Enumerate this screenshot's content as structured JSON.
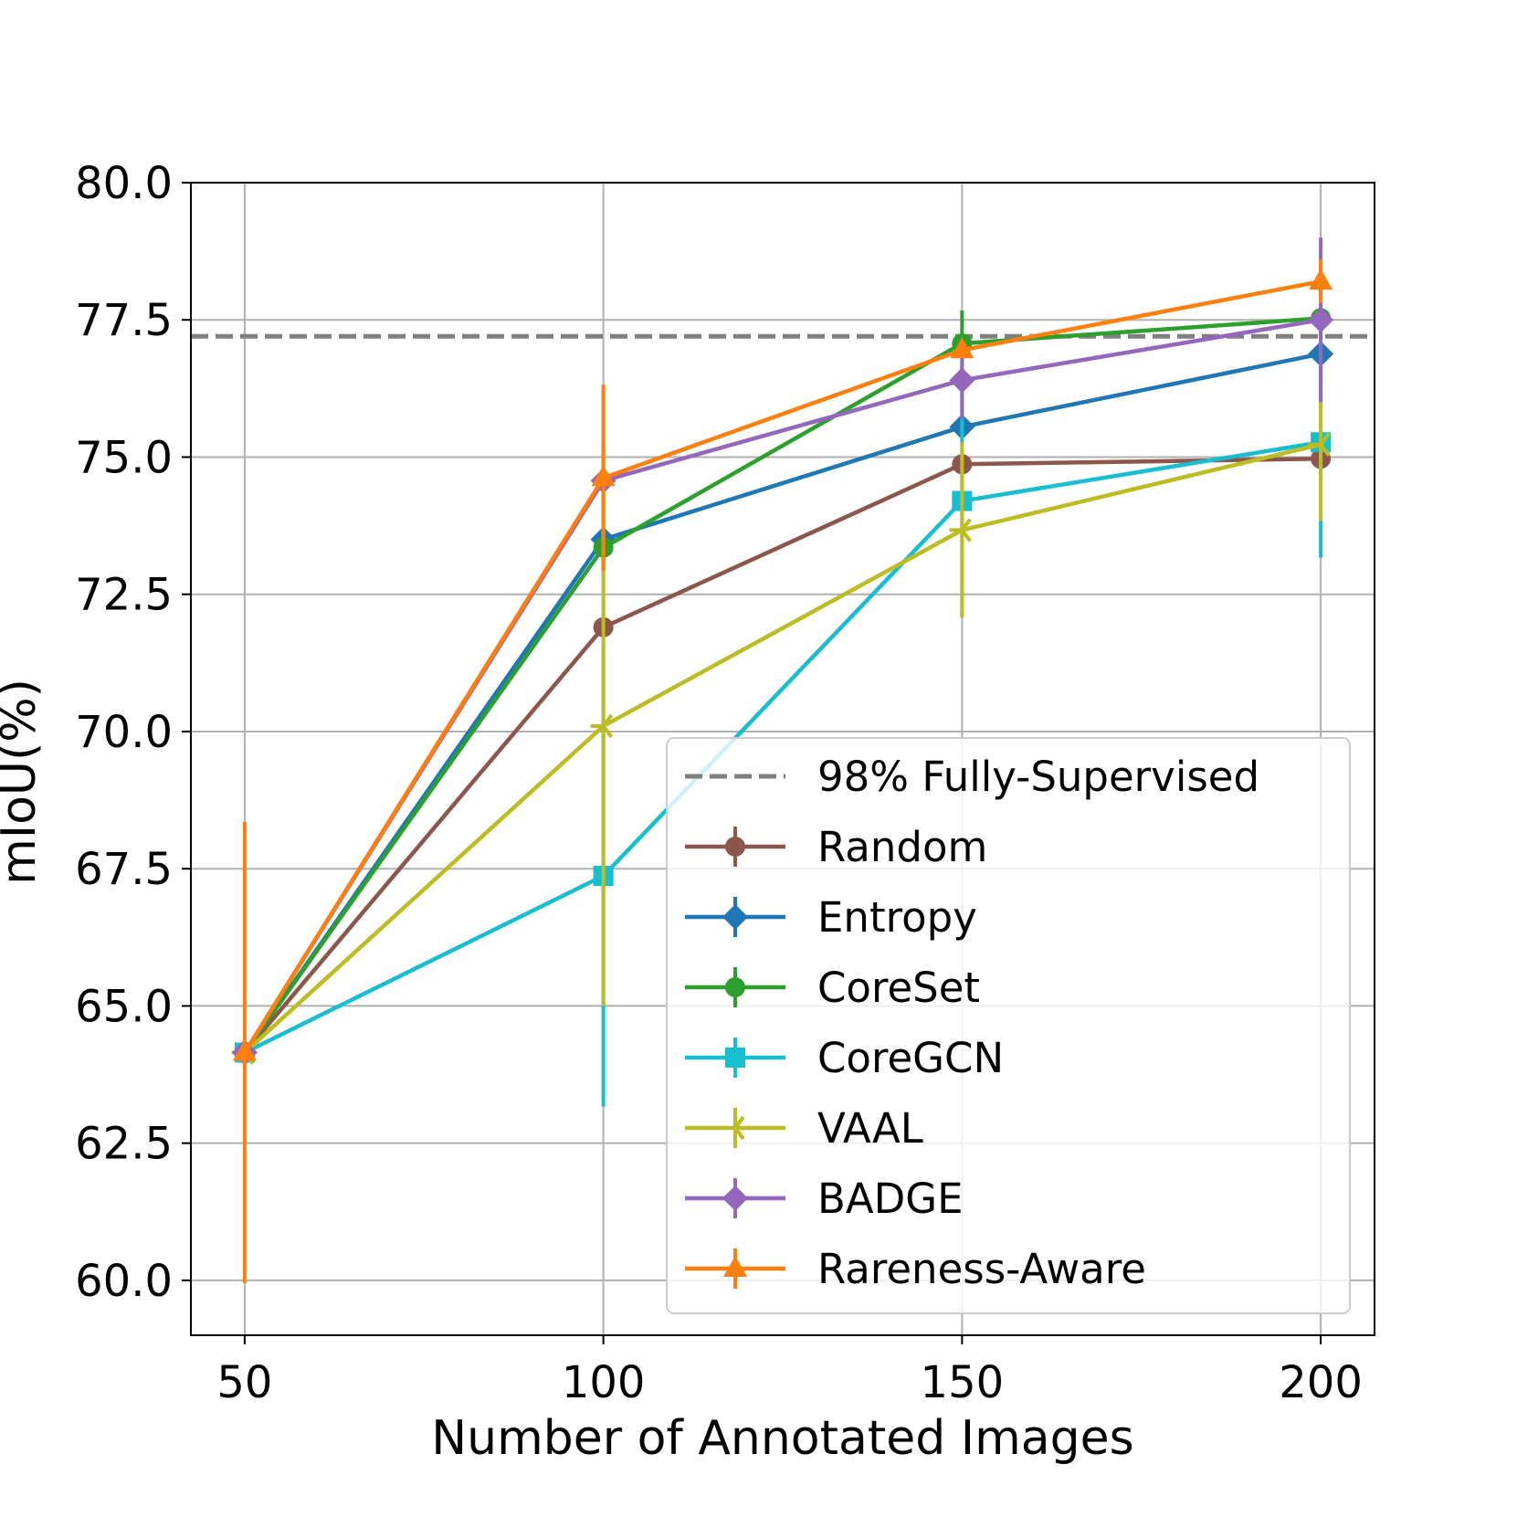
{
  "chart_data": {
    "type": "line",
    "title": "",
    "xlabel": "Number of Annotated Images",
    "ylabel": "mIoU(%)",
    "x": [
      50,
      100,
      150,
      200
    ],
    "xlim": [
      42.5,
      207.5
    ],
    "ylim": [
      59.0,
      80.0
    ],
    "xticks": [
      50,
      100,
      150,
      200
    ],
    "yticks": [
      60.0,
      62.5,
      65.0,
      67.5,
      70.0,
      72.5,
      75.0,
      77.5,
      80.0
    ],
    "grid": true,
    "legend_position": "lower-right",
    "reference_line": {
      "name": "98% Fully-Supervised",
      "value": 77.2,
      "color": "#7f7f7f",
      "style": "dashed"
    },
    "series": [
      {
        "name": "Random",
        "color": "#8c564b",
        "marker": "circle",
        "values": [
          64.15,
          71.9,
          74.87,
          74.97
        ],
        "errors": [
          0.0,
          0.0,
          0.0,
          0.0
        ]
      },
      {
        "name": "Entropy",
        "color": "#1f77b4",
        "marker": "diamond",
        "values": [
          64.15,
          73.5,
          75.55,
          76.88
        ],
        "errors": [
          0.0,
          0.0,
          0.0,
          0.0
        ]
      },
      {
        "name": "CoreSet",
        "color": "#2ca02c",
        "marker": "circle",
        "values": [
          64.15,
          73.35,
          77.07,
          77.53
        ],
        "errors": [
          0.0,
          0.0,
          0.6,
          0.0
        ]
      },
      {
        "name": "CoreGCN",
        "color": "#17becf",
        "marker": "square",
        "values": [
          64.15,
          67.37,
          74.2,
          75.27
        ],
        "errors": [
          0.0,
          4.2,
          2.1,
          2.1
        ]
      },
      {
        "name": "VAAL",
        "color": "#bcbd22",
        "marker": "tri-left",
        "values": [
          64.15,
          70.1,
          73.67,
          75.23
        ],
        "errors": [
          0.0,
          5.1,
          1.6,
          1.4
        ]
      },
      {
        "name": "BADGE",
        "color": "#9467bd",
        "marker": "diamond",
        "values": [
          64.15,
          74.57,
          76.4,
          77.5
        ],
        "errors": [
          0.0,
          0.0,
          0.7,
          1.5
        ]
      },
      {
        "name": "Rareness-Aware",
        "color": "#ff7f0e",
        "marker": "triangle-up",
        "values": [
          64.15,
          74.62,
          76.95,
          78.2
        ],
        "errors": [
          4.2,
          1.7,
          0.0,
          0.4
        ]
      }
    ]
  }
}
